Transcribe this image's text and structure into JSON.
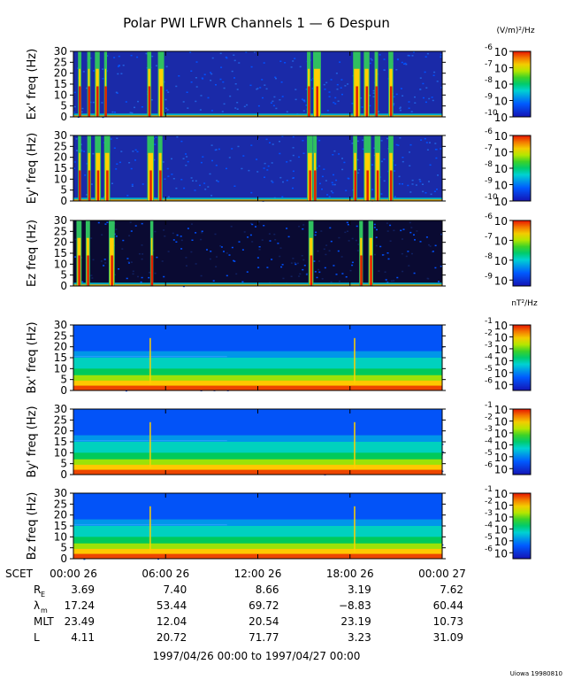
{
  "title": "Polar PWI LFWR Channels 1 — 6 Despun",
  "credit": "Uiowa 19980810",
  "date_range": "1997/04/26 00:00 to 1997/04/27 00:00",
  "colorbar_units": {
    "electric": "(V/m)²/Hz",
    "magnetic": "nT²/Hz"
  },
  "chart_data": [
    {
      "type": "heatmap",
      "ylabel": "Ex' freq (Hz)",
      "ylim": [
        0,
        30
      ],
      "yticks": [
        "0",
        "5",
        "10",
        "15",
        "20",
        "25",
        "30"
      ],
      "colorbar": {
        "exponents": [
          "-6",
          "-7",
          "-8",
          "-9",
          "-10"
        ],
        "log_range": [
          -10,
          -6
        ]
      },
      "events_hours": [
        0.3,
        0.9,
        1.4,
        2.0,
        4.8,
        5.5,
        15.2,
        15.6,
        18.2,
        18.9,
        19.6,
        20.5
      ]
    },
    {
      "type": "heatmap",
      "ylabel": "Ey' freq (Hz)",
      "ylim": [
        0,
        30
      ],
      "yticks": [
        "0",
        "5",
        "10",
        "15",
        "20",
        "25",
        "30"
      ],
      "colorbar": {
        "exponents": [
          "-6",
          "-7",
          "-8",
          "-9",
          "-10"
        ],
        "log_range": [
          -10,
          -6
        ]
      },
      "events_hours": [
        0.3,
        0.9,
        1.4,
        2.0,
        4.8,
        5.5,
        15.2,
        15.6,
        18.2,
        18.9,
        19.6,
        20.5
      ]
    },
    {
      "type": "heatmap",
      "ylabel": "Ez freq (Hz)",
      "ylim": [
        0,
        30
      ],
      "yticks": [
        "0",
        "5",
        "10",
        "15",
        "20",
        "25",
        "30"
      ],
      "colorbar": {
        "exponents": [
          "-6",
          "-7",
          "-8",
          "-9"
        ],
        "log_range": [
          -9.3,
          -6
        ]
      },
      "events_hours": [
        0.2,
        0.8,
        2.3,
        5.0,
        15.3,
        18.6,
        19.2
      ]
    },
    {
      "type": "heatmap",
      "ylabel": "Bx' freq (Hz)",
      "ylim": [
        0,
        30
      ],
      "yticks": [
        "0",
        "5",
        "10",
        "15",
        "20",
        "25",
        "30"
      ],
      "colorbar": {
        "exponents": [
          "-1",
          "-2",
          "-3",
          "-4",
          "-5",
          "-6"
        ],
        "log_range": [
          -6.5,
          -1
        ]
      },
      "events_hours": [
        5.0,
        18.3
      ]
    },
    {
      "type": "heatmap",
      "ylabel": "By' freq (Hz)",
      "ylim": [
        0,
        30
      ],
      "yticks": [
        "0",
        "5",
        "10",
        "15",
        "20",
        "25",
        "30"
      ],
      "colorbar": {
        "exponents": [
          "-1",
          "-2",
          "-3",
          "-4",
          "-5",
          "-6"
        ],
        "log_range": [
          -6.5,
          -1
        ]
      },
      "events_hours": [
        5.0,
        18.3
      ]
    },
    {
      "type": "heatmap",
      "ylabel": "Bz freq (Hz)",
      "ylim": [
        0,
        30
      ],
      "yticks": [
        "0",
        "5",
        "10",
        "15",
        "20",
        "25",
        "30"
      ],
      "colorbar": {
        "exponents": [
          "-1",
          "-2",
          "-3",
          "-4",
          "-5",
          "-6"
        ],
        "log_range": [
          -6.5,
          -1
        ]
      },
      "events_hours": [
        5.0,
        18.3
      ]
    }
  ],
  "x_axis": {
    "range_hours": [
      0,
      24
    ],
    "tick_hours": [
      0,
      6,
      12,
      18,
      24
    ],
    "rows": [
      {
        "label": "SCET",
        "values": [
          "00:00 26",
          "06:00 26",
          "12:00 26",
          "18:00 26",
          "00:00 27"
        ]
      },
      {
        "label": "R",
        "sub": "E",
        "values": [
          "3.69",
          "7.40",
          "8.66",
          "3.19",
          "7.62"
        ]
      },
      {
        "label": "λ",
        "sub": "m",
        "values": [
          "17.24",
          "53.44",
          "69.72",
          "−8.83",
          "60.44"
        ]
      },
      {
        "label": "MLT",
        "sub": "",
        "values": [
          "23.49",
          "12.04",
          "20.54",
          "23.19",
          "10.73"
        ]
      },
      {
        "label": "L",
        "sub": "",
        "values": [
          "4.11",
          "20.72",
          "71.77",
          "3.23",
          "31.09"
        ]
      }
    ]
  }
}
